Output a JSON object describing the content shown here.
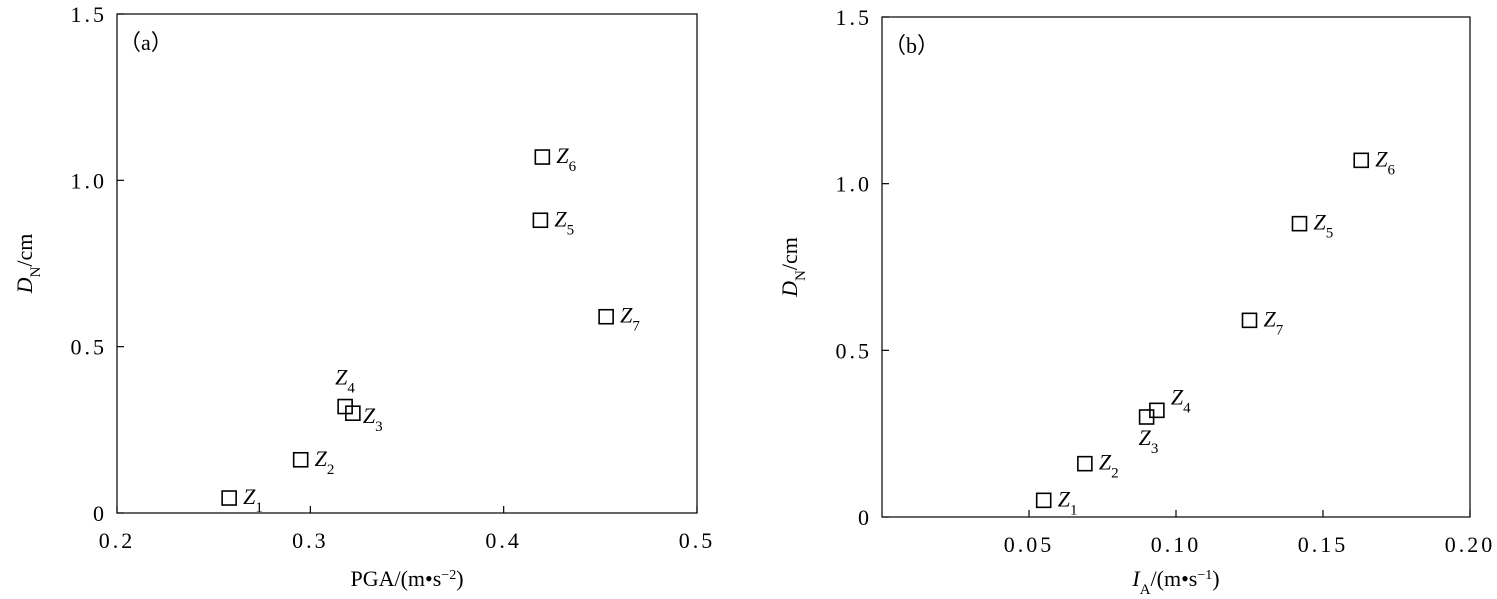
{
  "chart_data": [
    {
      "type": "scatter",
      "panel_label": "（a）",
      "xlabel": [
        {
          "text": "PGA/(m•s"
        },
        {
          "text": "−2",
          "sup": true
        },
        {
          "text": ")"
        }
      ],
      "ylabel": [
        {
          "text": "D",
          "italic": true
        },
        {
          "text": "N",
          "sub": true
        },
        {
          "text": "/cm"
        }
      ],
      "x": [
        0.258,
        0.295,
        0.322,
        0.318,
        0.419,
        0.42,
        0.453
      ],
      "y": [
        0.045,
        0.16,
        0.3,
        0.32,
        0.88,
        1.07,
        0.59
      ],
      "point_labels": [
        [
          {
            "text": "Z",
            "italic": true
          },
          {
            "text": "1",
            "sub": true
          }
        ],
        [
          {
            "text": "Z",
            "italic": true
          },
          {
            "text": "2",
            "sub": true
          }
        ],
        [
          {
            "text": "Z",
            "italic": true
          },
          {
            "text": "3",
            "sub": true
          }
        ],
        [
          {
            "text": "Z",
            "italic": true
          },
          {
            "text": "4",
            "sub": true
          }
        ],
        [
          {
            "text": "Z",
            "italic": true
          },
          {
            "text": "5",
            "sub": true
          }
        ],
        [
          {
            "text": "Z",
            "italic": true
          },
          {
            "text": "6",
            "sub": true
          }
        ],
        [
          {
            "text": "Z",
            "italic": true
          },
          {
            "text": "7",
            "sub": true
          }
        ]
      ],
      "color": "#000000",
      "xlim": [
        0.2,
        0.5
      ],
      "xticks": [
        0.2,
        0.3,
        0.4,
        0.5
      ],
      "ylim": [
        0,
        1.5
      ],
      "yticks": [
        0,
        0.5,
        {
          "value": 1,
          "label": "1.0"
        },
        1.5
      ]
    },
    {
      "type": "scatter",
      "panel_label": "（b）",
      "xlabel": [
        {
          "text": "I",
          "italic": true
        },
        {
          "text": "A",
          "sub": true
        },
        {
          "text": "/(m•s"
        },
        {
          "text": "−1",
          "sup": true
        },
        {
          "text": ")"
        }
      ],
      "ylabel": [
        {
          "text": "D",
          "italic": true
        },
        {
          "text": "N",
          "sub": true
        },
        {
          "text": "/cm"
        }
      ],
      "x": [
        0.055,
        0.069,
        0.09,
        0.0935,
        0.142,
        0.163,
        0.125
      ],
      "y": [
        0.05,
        0.16,
        0.3,
        0.32,
        0.88,
        1.07,
        0.59
      ],
      "point_labels": [
        [
          {
            "text": "Z",
            "italic": true
          },
          {
            "text": "1",
            "sub": true
          }
        ],
        [
          {
            "text": "Z",
            "italic": true
          },
          {
            "text": "2",
            "sub": true
          }
        ],
        [
          {
            "text": "Z",
            "italic": true
          },
          {
            "text": "3",
            "sub": true
          }
        ],
        [
          {
            "text": "Z",
            "italic": true
          },
          {
            "text": "4",
            "sub": true
          }
        ],
        [
          {
            "text": "Z",
            "italic": true
          },
          {
            "text": "5",
            "sub": true
          }
        ],
        [
          {
            "text": "Z",
            "italic": true
          },
          {
            "text": "6",
            "sub": true
          }
        ],
        [
          {
            "text": "Z",
            "italic": true
          },
          {
            "text": "7",
            "sub": true
          }
        ]
      ],
      "color": "#000000",
      "xlim": [
        0,
        0.2
      ],
      "xticks": [
        0.05,
        {
          "value": 0.1,
          "label": "0.10"
        },
        0.15,
        {
          "value": 0.2,
          "label": "0.20"
        }
      ],
      "ylim": [
        0,
        1.5
      ],
      "yticks": [
        0,
        0.5,
        {
          "value": 1,
          "label": "1.0"
        },
        1.5
      ]
    }
  ]
}
